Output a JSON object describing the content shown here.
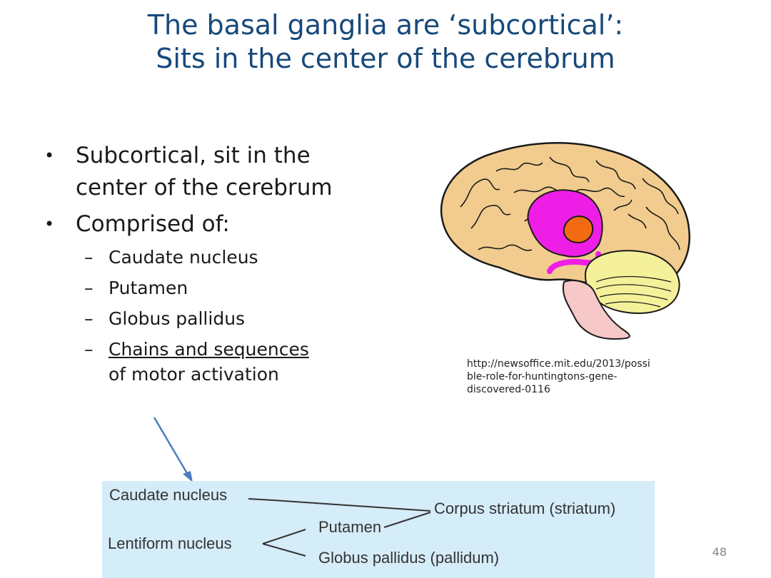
{
  "title": {
    "line1": "The basal ganglia are ‘subcortical’:",
    "line2": "Sits in the center of the cerebrum"
  },
  "bullets": {
    "b1_line1": "Subcortical, sit in the",
    "b1_line2": "center of the cerebrum",
    "b2": "Comprised of:",
    "sub": [
      "Caudate nucleus",
      "Putamen",
      "Globus pallidus"
    ],
    "sub4_link": "Chains and sequences",
    "sub4_rest": "of motor activation"
  },
  "credit": {
    "line1": "http://newsoffice.mit.edu/2013/possi",
    "line2": "ble-role-for-huntingtons-gene-",
    "line3": "discovered-0116"
  },
  "diagram": {
    "caudate": "Caudate nucleus",
    "corpus": "Corpus striatum (striatum)",
    "putamen": "Putamen",
    "lentiform": "Lentiform nucleus",
    "globus": "Globus pallidus (pallidum)"
  },
  "page_number": "48",
  "colors": {
    "title": "#17497a",
    "brain_cortex": "#f2cc8e",
    "caudate_pink": "#ee1ee6",
    "putamen_orange": "#f26a12",
    "cerebellum_yellow": "#f4f19a",
    "brainstem_pink": "#f7c8c8",
    "table_bg": "#d5ecf9",
    "arrow": "#4f7cc1"
  }
}
